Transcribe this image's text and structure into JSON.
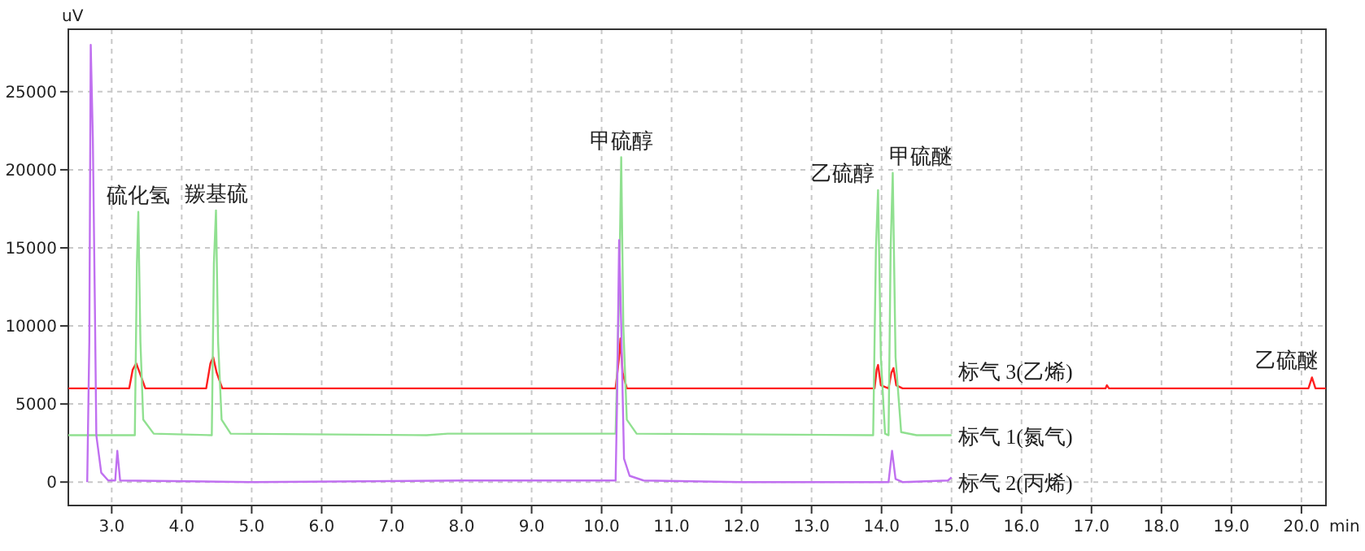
{
  "chart_data": {
    "type": "line",
    "xlabel": "min",
    "ylabel": "uV",
    "xlim": [
      2.38,
      20.35
    ],
    "ylim": [
      -1500,
      29000
    ],
    "xticks": [
      {
        "value": 3,
        "label": "3.0"
      },
      {
        "value": 4,
        "label": "4.0"
      },
      {
        "value": 5,
        "label": "5.0"
      },
      {
        "value": 6,
        "label": "6.0"
      },
      {
        "value": 7,
        "label": "7.0"
      },
      {
        "value": 8,
        "label": "8.0"
      },
      {
        "value": 9,
        "label": "9.0"
      },
      {
        "value": 10,
        "label": "10.0"
      },
      {
        "value": 11,
        "label": "11.0"
      },
      {
        "value": 12,
        "label": "12.0"
      },
      {
        "value": 13,
        "label": "13.0"
      },
      {
        "value": 14,
        "label": "14.0"
      },
      {
        "value": 15,
        "label": "15.0"
      },
      {
        "value": 16,
        "label": "16.0"
      },
      {
        "value": 17,
        "label": "17.0"
      },
      {
        "value": 18,
        "label": "18.0"
      },
      {
        "value": 19,
        "label": "19.0"
      },
      {
        "value": 20,
        "label": "20.0"
      }
    ],
    "yticks": [
      0,
      5000,
      10000,
      15000,
      20000,
      25000
    ],
    "grid": true,
    "legend": false,
    "marker": "none",
    "line_style": "solid",
    "series": [
      {
        "name": "标气 3(乙烯)",
        "color": "#ff2020",
        "x": [
          2.38,
          3.25,
          3.3,
          3.35,
          3.4,
          3.48,
          4.35,
          4.41,
          4.45,
          4.5,
          4.58,
          10.2,
          10.25,
          10.27,
          10.3,
          10.36,
          13.9,
          13.93,
          13.95,
          13.99,
          14.1,
          14.14,
          14.17,
          14.21,
          14.3,
          17.2,
          17.22,
          17.25,
          20.1,
          20.15,
          20.2,
          20.35
        ],
        "values": [
          6000,
          6000,
          7200,
          7600,
          7000,
          6000,
          6000,
          7600,
          8000,
          7000,
          6000,
          6000,
          8000,
          9200,
          7000,
          6000,
          6000,
          7200,
          7500,
          6200,
          6000,
          7000,
          7300,
          6200,
          6000,
          6000,
          6200,
          6000,
          6000,
          6700,
          6000,
          6000
        ]
      },
      {
        "name": "标气 1(氮气)",
        "color": "#90e090",
        "x": [
          2.38,
          3.33,
          3.36,
          3.38,
          3.41,
          3.45,
          3.6,
          4.43,
          4.46,
          4.49,
          4.52,
          4.57,
          4.7,
          7.5,
          7.8,
          10.2,
          10.25,
          10.28,
          10.31,
          10.36,
          10.5,
          13.88,
          13.92,
          13.95,
          13.99,
          14.05,
          14.1,
          14.13,
          14.16,
          14.2,
          14.28,
          14.5,
          15.0
        ],
        "values": [
          3000,
          3000,
          14000,
          17300,
          9000,
          4000,
          3100,
          3000,
          14000,
          17400,
          9000,
          4000,
          3100,
          3000,
          3100,
          3100,
          12000,
          20800,
          10000,
          4000,
          3100,
          3000,
          15000,
          18700,
          8000,
          3100,
          3000,
          15000,
          19800,
          8000,
          3200,
          3000,
          3000
        ]
      },
      {
        "name": "标气 2(丙烯)",
        "color": "#c070f0",
        "x": [
          2.65,
          2.68,
          2.7,
          2.73,
          2.76,
          2.78,
          2.85,
          2.95,
          3.05,
          3.08,
          3.12,
          5.0,
          8.0,
          10.2,
          10.22,
          10.25,
          10.28,
          10.32,
          10.4,
          10.6,
          12.0,
          13.5,
          14.1,
          14.15,
          14.2,
          14.3,
          14.95,
          15.0
        ],
        "values": [
          0,
          9000,
          28000,
          22000,
          11000,
          3000,
          600,
          100,
          100,
          2000,
          100,
          0,
          100,
          100,
          5000,
          15500,
          10000,
          1500,
          400,
          100,
          0,
          0,
          0,
          2000,
          200,
          0,
          100,
          300
        ]
      }
    ],
    "annotations": [
      {
        "text": "硫化氢",
        "x": 3.38,
        "y": 17300
      },
      {
        "text": "羰基硫",
        "x": 4.49,
        "y": 17400
      },
      {
        "text": "甲硫醇",
        "x": 10.28,
        "y": 20800
      },
      {
        "text": "乙硫醇",
        "x": 13.95,
        "y": 18700
      },
      {
        "text": "甲硫醚",
        "x": 14.16,
        "y": 19800
      },
      {
        "text": "乙硫醚",
        "x": 20.15,
        "y": 6700
      }
    ]
  }
}
